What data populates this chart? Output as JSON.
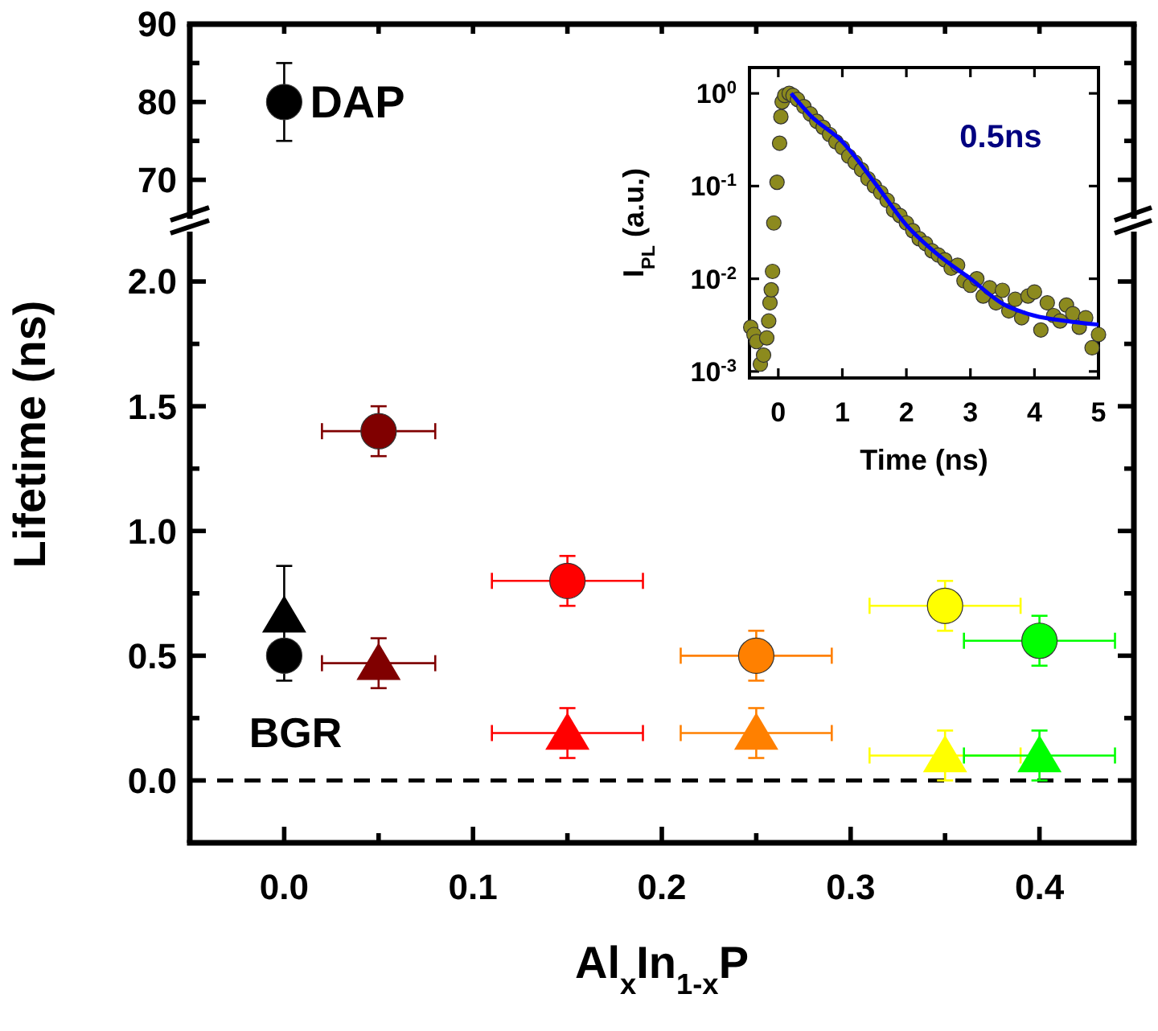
{
  "chart_data": [
    {
      "type": "scatter",
      "xlim": [
        -0.05,
        0.45
      ],
      "ylim": [
        65,
        90
      ],
      "xticks": [
        {
          "value": 0,
          "label": null
        },
        {
          "value": 0.05,
          "label": null
        },
        {
          "value": 0.1,
          "label": null
        },
        {
          "value": 0.15,
          "label": null
        },
        {
          "value": 0.2,
          "label": null
        },
        {
          "value": 0.25,
          "label": null
        },
        {
          "value": 0.3,
          "label": null
        },
        {
          "value": 0.35,
          "label": null
        },
        {
          "value": 0.4,
          "label": null
        }
      ],
      "yticks": [
        70,
        {
          "value": 75,
          "label": null
        },
        80,
        {
          "value": 85,
          "label": null
        },
        90
      ],
      "tick_labels": "y",
      "grid": false,
      "series": [
        {
          "type": "scatter",
          "marker": "circle",
          "color": "#000000",
          "x": [
            0.0
          ],
          "values": [
            80
          ],
          "errors": [
            5
          ]
        }
      ],
      "annotations": [
        {
          "text": "DAP",
          "x": 0.0,
          "y": 80
        }
      ]
    },
    {
      "type": "scatter",
      "xlabel": "Al$_{x}$In$_{1-x}$P",
      "ylabel": "Lifetime (ns)",
      "xlim": [
        -0.05,
        0.45
      ],
      "ylim": [
        -0.25,
        2.2
      ],
      "xticks": [
        {
          "value": 0,
          "label": "0.0"
        },
        {
          "value": 0.05,
          "label": null
        },
        0.1,
        {
          "value": 0.15,
          "label": null
        },
        0.2,
        {
          "value": 0.25,
          "label": null
        },
        0.3,
        {
          "value": 0.35,
          "label": null
        },
        0.4
      ],
      "yticks": [
        {
          "value": 0,
          "label": "0.0"
        },
        {
          "value": 0.25,
          "label": null
        },
        0.5,
        {
          "value": 0.75,
          "label": null
        },
        {
          "value": 1,
          "label": "1.0"
        },
        {
          "value": 1.25,
          "label": null
        },
        1.5,
        {
          "value": 1.75,
          "label": null
        },
        {
          "value": 2,
          "label": "2.0"
        }
      ],
      "grid": false,
      "series": [
        {
          "type": "scatter",
          "marker": "circle",
          "colors": [
            "#000000",
            "#800000",
            "#ff0000",
            "#ff8000",
            "#ffff00",
            "#00ff00"
          ],
          "x": [
            0.0,
            0.05,
            0.15,
            0.25,
            0.35,
            0.4
          ],
          "values": [
            0.5,
            1.4,
            0.8,
            0.5,
            0.7,
            0.56
          ],
          "errors": [
            0.1,
            0.1,
            0.1,
            0.1,
            0.1,
            0.1
          ],
          "xerrors": [
            null,
            0.03,
            0.04,
            0.04,
            0.04,
            0.04
          ]
        },
        {
          "type": "scatter",
          "marker": "triangle",
          "colors": [
            "#000000",
            "#800000",
            "#ff0000",
            "#ff8000",
            "#ffff00",
            "#00ff00"
          ],
          "x": [
            0.0,
            0.05,
            0.15,
            0.25,
            0.35,
            0.4
          ],
          "values": [
            0.66,
            0.47,
            0.19,
            0.19,
            0.1,
            0.1
          ],
          "errors": [
            [
              0.66,
              0.86
            ],
            0.1,
            0.1,
            0.1,
            0.1,
            0.1
          ],
          "xerrors": [
            null,
            0.03,
            0.04,
            0.04,
            0.04,
            0.04
          ]
        }
      ],
      "ref_lines": [
        {
          "axis": "y",
          "value": 0,
          "color": "#000000",
          "line_style": "dashed"
        }
      ],
      "annotations": [
        "BGR"
      ]
    },
    {
      "type": "scatter",
      "xlabel": "Time (ns)",
      "ylabel": "I$_{PL}$ (a.u.)",
      "xlim": [
        -0.45,
        5
      ],
      "ylim": [
        0.00085,
        1.9
      ],
      "log": "y",
      "xticks": [
        0,
        1,
        2,
        3,
        4,
        5
      ],
      "yticks": [
        {
          "value": 0.001,
          "label": "10$^{-3}$"
        },
        {
          "value": 0.01,
          "label": "10$^{-2}$"
        },
        {
          "value": 0.1,
          "label": "10$^{-1}$"
        },
        {
          "value": 1,
          "label": "10$^{0}$"
        }
      ],
      "grid": false,
      "series": [
        {
          "type": "scatter",
          "marker": "circle",
          "color": "#8c8a1e",
          "x": [
            -0.43,
            -0.38,
            -0.34,
            -0.28,
            -0.23,
            -0.18,
            -0.15,
            -0.13,
            -0.11,
            -0.09,
            -0.07,
            -0.02,
            0.02,
            0.04,
            0.06,
            0.1,
            0.17,
            0.23,
            0.3,
            0.4,
            0.5,
            0.6,
            0.7,
            0.8,
            0.9,
            1.0,
            1.1,
            1.2,
            1.3,
            1.4,
            1.5,
            1.6,
            1.7,
            1.8,
            1.9,
            2.0,
            2.1,
            2.2,
            2.3,
            2.4,
            2.5,
            2.6,
            2.7,
            2.8,
            2.9,
            3.0,
            3.1,
            3.2,
            3.3,
            3.4,
            3.5,
            3.6,
            3.7,
            3.8,
            3.9,
            4.0,
            4.1,
            4.2,
            4.3,
            4.4,
            4.5,
            4.6,
            4.7,
            4.8,
            4.9,
            5.0
          ],
          "values": [
            0.003,
            0.0025,
            0.0021,
            0.0012,
            0.0015,
            0.0023,
            0.0035,
            0.0055,
            0.0076,
            0.012,
            0.04,
            0.11,
            0.29,
            0.56,
            0.81,
            0.95,
            1.0,
            0.95,
            0.86,
            0.72,
            0.6,
            0.5,
            0.43,
            0.36,
            0.3,
            0.26,
            0.21,
            0.18,
            0.15,
            0.12,
            0.1,
            0.085,
            0.07,
            0.055,
            0.048,
            0.04,
            0.033,
            0.027,
            0.024,
            0.02,
            0.018,
            0.016,
            0.013,
            0.014,
            0.0095,
            0.0085,
            0.01,
            0.0065,
            0.008,
            0.0055,
            0.0075,
            0.0045,
            0.006,
            0.0038,
            0.0065,
            0.0072,
            0.0028,
            0.0055,
            0.004,
            0.0035,
            0.0052,
            0.0042,
            0.003,
            0.0038,
            0.0018,
            0.0025
          ]
        },
        {
          "type": "line",
          "color": "#0000ff",
          "x": [
            0.2,
            0.5,
            1.0,
            1.5,
            2.0,
            2.5,
            3.0,
            3.5,
            4.0,
            4.5,
            5.0
          ],
          "values": [
            1.0,
            0.58,
            0.3,
            0.11,
            0.038,
            0.018,
            0.01,
            0.0054,
            0.004,
            0.0035,
            0.0032
          ]
        }
      ],
      "annotations": [
        "0.5ns"
      ]
    }
  ]
}
